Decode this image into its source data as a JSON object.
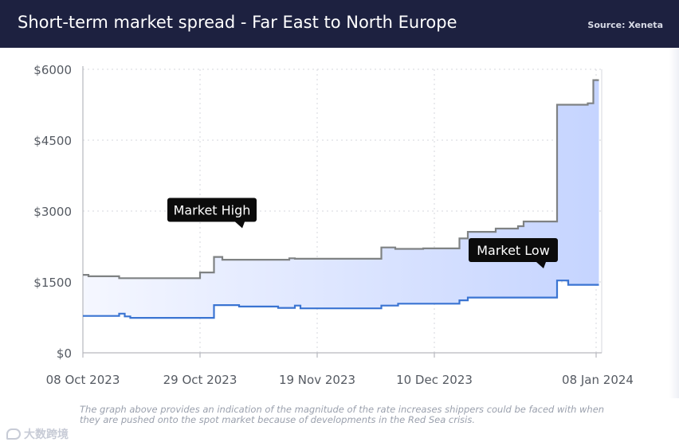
{
  "header": {
    "title": "Short-term market spread - Far East to North Europe",
    "source": "Source: Xeneta"
  },
  "caption": "The graph above provides an indication of the magnitude of the rate increases shippers could be faced with when they are pushed onto the spot market because of developments in the Red Sea crisis.",
  "logo": {
    "text": "大数跨境"
  },
  "colors": {
    "header_bg": "#1d2140",
    "market_high": "#7f8283",
    "market_low": "#3a74d2",
    "fill_left": "#f5f7ff",
    "fill_right": "#c5d4ff",
    "grid": "#d5d7dc",
    "axis": "#b6b8bd",
    "tick_text": "#555a62"
  },
  "chart_data": {
    "type": "area",
    "title": "Short-term market spread - Far East to North Europe",
    "xlabel": "",
    "ylabel": "",
    "x_range_days": [
      0,
      93
    ],
    "ylim": [
      0,
      6000
    ],
    "x_ticks": [
      {
        "day": 0,
        "label": "08 Oct 2023"
      },
      {
        "day": 21,
        "label": "29 Oct 2023"
      },
      {
        "day": 42,
        "label": "19 Nov 2023"
      },
      {
        "day": 63,
        "label": "10 Dec 2023"
      },
      {
        "day": 92,
        "label": "08 Jan 2024"
      }
    ],
    "y_ticks": [
      {
        "value": 0,
        "label": "$0"
      },
      {
        "value": 1500,
        "label": "$1500"
      },
      {
        "value": 3000,
        "label": "$3000"
      },
      {
        "value": 4500,
        "label": "$4500"
      },
      {
        "value": 6000,
        "label": "$6000"
      }
    ],
    "grid": true,
    "series": [
      {
        "name": "Market High",
        "annotation": "Market High",
        "annotation_at": {
          "day": 20,
          "value": 2300
        },
        "points": [
          [
            0,
            1650
          ],
          [
            1,
            1650
          ],
          [
            1,
            1620
          ],
          [
            6.5,
            1620
          ],
          [
            6.5,
            1580
          ],
          [
            21,
            1580
          ],
          [
            21,
            1700
          ],
          [
            23.5,
            1700
          ],
          [
            23.5,
            2030
          ],
          [
            25,
            2030
          ],
          [
            25,
            1970
          ],
          [
            33,
            1970
          ],
          [
            37,
            1970
          ],
          [
            37,
            2000
          ],
          [
            38,
            2000
          ],
          [
            38,
            1990
          ],
          [
            53.5,
            1990
          ],
          [
            53.5,
            2230
          ],
          [
            56,
            2230
          ],
          [
            56,
            2200
          ],
          [
            61,
            2200
          ],
          [
            61,
            2210
          ],
          [
            67.5,
            2210
          ],
          [
            67.5,
            2420
          ],
          [
            69,
            2420
          ],
          [
            69,
            2560
          ],
          [
            74,
            2560
          ],
          [
            74,
            2630
          ],
          [
            78,
            2630
          ],
          [
            78,
            2680
          ],
          [
            79,
            2680
          ],
          [
            79,
            2780
          ],
          [
            85,
            2780
          ],
          [
            85,
            5250
          ],
          [
            90.5,
            5250
          ],
          [
            90.5,
            5280
          ],
          [
            91.5,
            5280
          ],
          [
            91.5,
            5770
          ],
          [
            92.5,
            5770
          ]
        ]
      },
      {
        "name": "Market Low",
        "annotation": "Market Low",
        "annotation_at": {
          "day": 74,
          "value": 1450
        },
        "points": [
          [
            0,
            780
          ],
          [
            6.5,
            780
          ],
          [
            6.5,
            830
          ],
          [
            7.5,
            830
          ],
          [
            7.5,
            770
          ],
          [
            8.5,
            770
          ],
          [
            8.5,
            740
          ],
          [
            23.5,
            740
          ],
          [
            23.5,
            1010
          ],
          [
            28,
            1010
          ],
          [
            28,
            980
          ],
          [
            35,
            980
          ],
          [
            35,
            950
          ],
          [
            38,
            950
          ],
          [
            38,
            1000
          ],
          [
            39,
            1000
          ],
          [
            39,
            940
          ],
          [
            53.5,
            940
          ],
          [
            53.5,
            1000
          ],
          [
            56.5,
            1000
          ],
          [
            56.5,
            1040
          ],
          [
            67.5,
            1040
          ],
          [
            67.5,
            1110
          ],
          [
            69,
            1110
          ],
          [
            69,
            1170
          ],
          [
            85,
            1170
          ],
          [
            85,
            1530
          ],
          [
            87,
            1530
          ],
          [
            87,
            1440
          ],
          [
            92.5,
            1440
          ]
        ]
      }
    ]
  }
}
